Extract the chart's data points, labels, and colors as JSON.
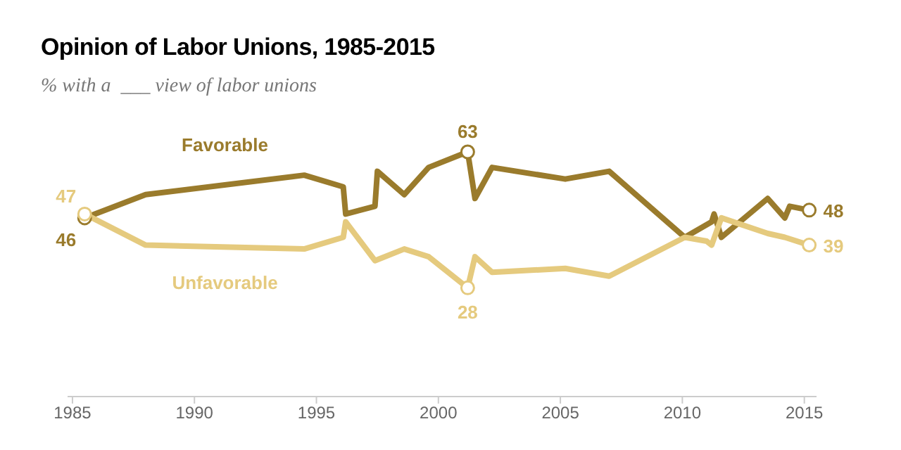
{
  "chart_data": {
    "type": "line",
    "title": "Opinion of Labor Unions, 1985-2015",
    "subtitle": "% with a  ___ view of labor unions",
    "xlim": [
      1984.8,
      2015.5
    ],
    "xticks": [
      1985,
      1990,
      1995,
      2000,
      2005,
      2010,
      2015
    ],
    "tick_labels": "x",
    "series": [
      {
        "name": "Favorable",
        "color": "#9a7b2c",
        "x": [
          1985.5,
          1988.0,
          1994.5,
          1996.1,
          1996.2,
          1997.4,
          1997.5,
          1998.6,
          1999.6,
          2001.2,
          2001.5,
          2002.2,
          2005.2,
          2007.0,
          2010.1,
          2011.2,
          2011.3,
          2011.6,
          2013.5,
          2014.2,
          2014.4,
          2015.2
        ],
        "values": [
          46,
          52,
          57,
          54,
          47,
          49,
          58,
          52,
          59,
          63,
          51,
          59,
          56,
          58,
          41,
          45,
          47,
          41,
          51,
          46,
          49,
          48
        ],
        "value_labels": [
          "46",
          null,
          null,
          null,
          null,
          null,
          null,
          null,
          null,
          "63",
          null,
          null,
          null,
          null,
          null,
          null,
          null,
          null,
          null,
          null,
          null,
          "48"
        ]
      },
      {
        "name": "Unfavorable",
        "color": "#e5ca7e",
        "x": [
          1985.5,
          1988.0,
          1994.5,
          1996.1,
          1996.2,
          1997.4,
          1998.6,
          1999.6,
          2001.2,
          2001.5,
          2002.2,
          2005.2,
          2007.0,
          2010.1,
          2011.0,
          2011.2,
          2011.6,
          2013.5,
          2014.2,
          2015.2
        ],
        "values": [
          47,
          39,
          38,
          41,
          45,
          35,
          38,
          36,
          28,
          36,
          32,
          33,
          31,
          41,
          40,
          39,
          46,
          42,
          41,
          39
        ],
        "value_labels": [
          "47",
          null,
          null,
          null,
          null,
          null,
          null,
          null,
          "28",
          null,
          null,
          null,
          null,
          null,
          null,
          null,
          null,
          null,
          null,
          "39"
        ]
      }
    ]
  }
}
